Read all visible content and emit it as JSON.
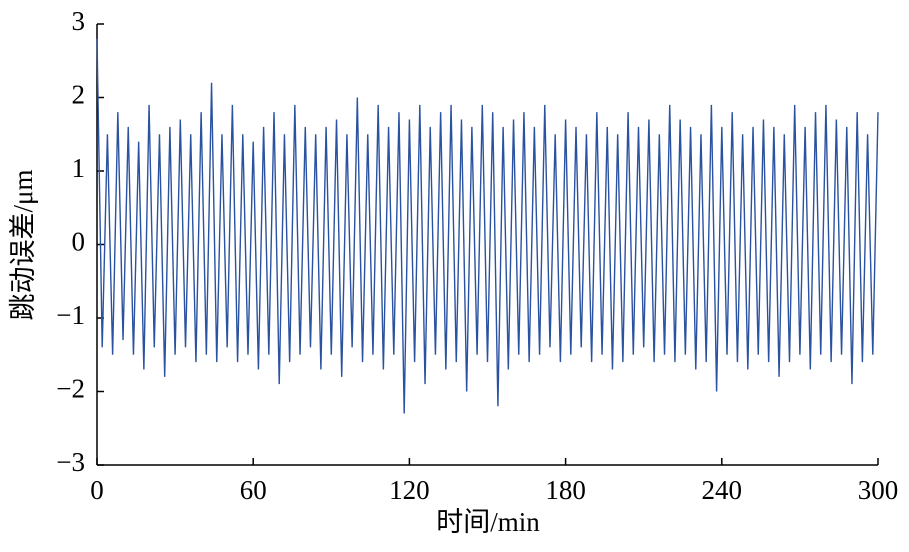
{
  "chart_data": {
    "type": "line",
    "x_label": "时间/min",
    "y_label": "跳动误差/μm",
    "x": [
      0,
      2,
      4,
      6,
      8,
      10,
      12,
      14,
      16,
      18,
      20,
      22,
      24,
      26,
      28,
      30,
      32,
      34,
      36,
      38,
      40,
      42,
      44,
      46,
      48,
      50,
      52,
      54,
      56,
      58,
      60,
      62,
      64,
      66,
      68,
      70,
      72,
      74,
      76,
      78,
      80,
      82,
      84,
      86,
      88,
      90,
      92,
      94,
      96,
      98,
      100,
      102,
      104,
      106,
      108,
      110,
      112,
      114,
      116,
      118,
      120,
      122,
      124,
      126,
      128,
      130,
      132,
      134,
      136,
      138,
      140,
      142,
      144,
      146,
      148,
      150,
      152,
      154,
      156,
      158,
      160,
      162,
      164,
      166,
      168,
      170,
      172,
      174,
      176,
      178,
      180,
      182,
      184,
      186,
      188,
      190,
      192,
      194,
      196,
      198,
      200,
      202,
      204,
      206,
      208,
      210,
      212,
      214,
      216,
      218,
      220,
      222,
      224,
      226,
      228,
      230,
      232,
      234,
      236,
      238,
      240,
      242,
      244,
      246,
      248,
      250,
      252,
      254,
      256,
      258,
      260,
      262,
      264,
      266,
      268,
      270,
      272,
      274,
      276,
      278,
      280,
      282,
      284,
      286,
      288,
      290,
      292,
      294,
      296,
      298,
      300
    ],
    "values": [
      2.8,
      -1.4,
      1.5,
      -1.5,
      1.8,
      -1.3,
      1.6,
      -1.5,
      1.4,
      -1.7,
      1.9,
      -1.4,
      1.5,
      -1.8,
      1.6,
      -1.5,
      1.7,
      -1.4,
      1.5,
      -1.6,
      1.8,
      -1.5,
      2.2,
      -1.6,
      1.5,
      -1.4,
      1.9,
      -1.6,
      1.5,
      -1.5,
      1.4,
      -1.7,
      1.6,
      -1.5,
      1.8,
      -1.9,
      1.5,
      -1.6,
      1.9,
      -1.5,
      1.6,
      -1.4,
      1.5,
      -1.7,
      1.6,
      -1.5,
      1.7,
      -1.8,
      1.5,
      -1.4,
      2.0,
      -1.6,
      1.5,
      -1.5,
      1.9,
      -1.7,
      1.6,
      -1.5,
      1.8,
      -2.3,
      1.7,
      -1.6,
      1.9,
      -1.9,
      1.6,
      -1.5,
      1.8,
      -1.7,
      1.9,
      -1.6,
      1.7,
      -2.0,
      1.6,
      -1.5,
      1.9,
      -1.6,
      1.8,
      -2.2,
      1.6,
      -1.7,
      1.7,
      -1.5,
      1.8,
      -1.6,
      1.6,
      -1.5,
      1.9,
      -1.4,
      1.5,
      -1.6,
      1.7,
      -1.5,
      1.6,
      -1.4,
      1.5,
      -1.6,
      1.8,
      -1.5,
      1.6,
      -1.7,
      1.5,
      -1.6,
      1.8,
      -1.5,
      1.6,
      -1.4,
      1.7,
      -1.6,
      1.5,
      -1.5,
      1.9,
      -1.6,
      1.7,
      -1.5,
      1.6,
      -1.7,
      1.5,
      -1.6,
      1.9,
      -2.0,
      1.6,
      -1.5,
      1.8,
      -1.6,
      1.5,
      -1.7,
      1.6,
      -1.5,
      1.7,
      -1.6,
      1.6,
      -1.8,
      1.5,
      -1.6,
      1.9,
      -1.5,
      1.6,
      -1.7,
      1.8,
      -1.5,
      1.9,
      -1.6,
      1.7,
      -1.5,
      1.6,
      -1.9,
      1.8,
      -1.6,
      1.5,
      -1.5,
      1.8
    ],
    "color": "#2a52a0",
    "xlim": [
      0,
      300
    ],
    "xticks": [
      0,
      60,
      120,
      180,
      240,
      300
    ],
    "ylim": [
      -3,
      3
    ],
    "yticks": [
      {
        "value": -3,
        "label": "−3"
      },
      {
        "value": -2,
        "label": "−2"
      },
      {
        "value": -1,
        "label": "−1"
      },
      0,
      1,
      2,
      3
    ]
  }
}
